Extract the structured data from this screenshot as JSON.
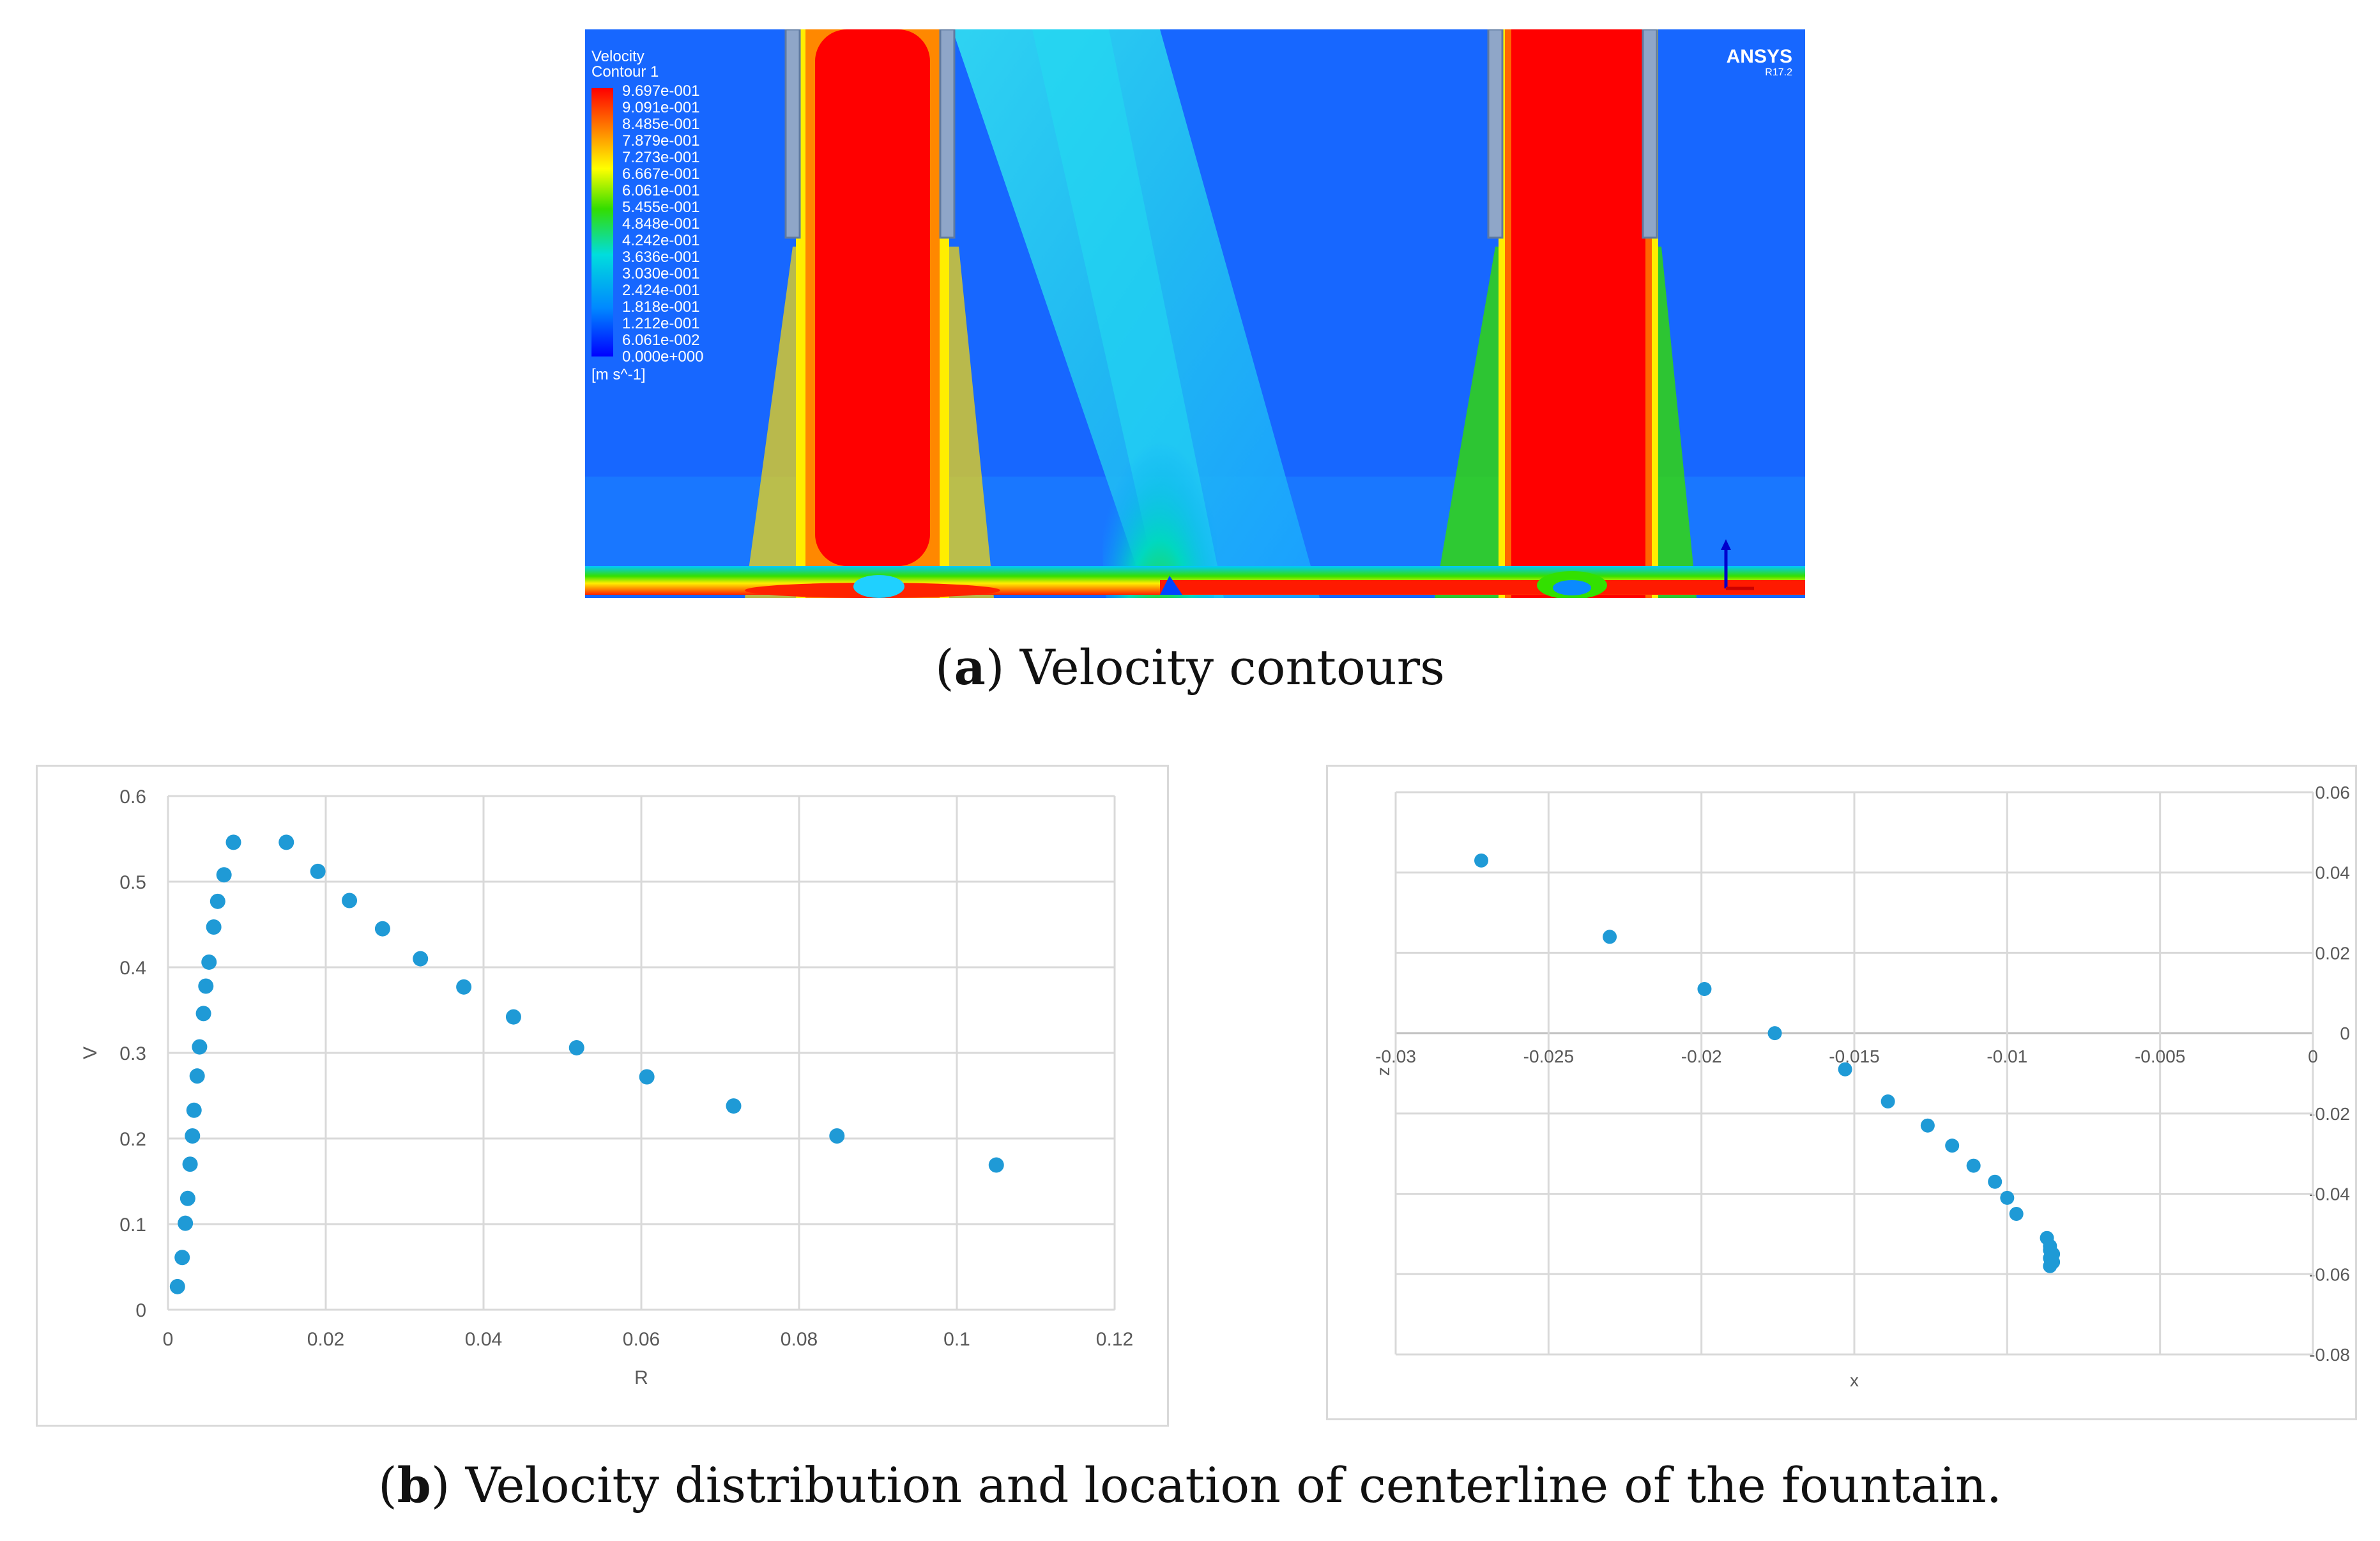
{
  "contour": {
    "legend_title_1": "Velocity",
    "legend_title_2": "Contour 1",
    "legend_values": [
      "9.697e-001",
      "9.091e-001",
      "8.485e-001",
      "7.879e-001",
      "7.273e-001",
      "6.667e-001",
      "6.061e-001",
      "5.455e-001",
      "4.848e-001",
      "4.242e-001",
      "3.636e-001",
      "3.030e-001",
      "2.424e-001",
      "1.818e-001",
      "1.212e-001",
      "6.061e-002",
      "0.000e+000"
    ],
    "unit": "[m s^-1]",
    "brand": "ANSYS",
    "version": "R17.2"
  },
  "captions": {
    "a_label": "a",
    "a_text": " Velocity contours",
    "b_label": "b",
    "b_text": " Velocity distribution and location of centerline of the fountain."
  },
  "chart_data": [
    {
      "type": "scatter",
      "title": "",
      "xlabel": "R",
      "ylabel": "V",
      "xlim": [
        0,
        0.12
      ],
      "ylim": [
        0,
        0.6
      ],
      "xticks": [
        0,
        0.02,
        0.04,
        0.06,
        0.08,
        0.1,
        0.12
      ],
      "xtick_labels": [
        "0",
        "0.02",
        "0.04",
        "0.06",
        "0.08",
        "0.1",
        "0.12"
      ],
      "yticks": [
        0,
        0.1,
        0.2,
        0.3,
        0.4,
        0.5,
        0.6
      ],
      "ytick_labels": [
        "0",
        "0.1",
        "0.2",
        "0.3",
        "0.4",
        "0.5",
        "0.6"
      ],
      "color": "#1f9ad6",
      "points": [
        [
          0.0012,
          0.027
        ],
        [
          0.0018,
          0.061
        ],
        [
          0.0022,
          0.101
        ],
        [
          0.0025,
          0.13
        ],
        [
          0.0028,
          0.17
        ],
        [
          0.0031,
          0.203
        ],
        [
          0.0033,
          0.233
        ],
        [
          0.0037,
          0.273
        ],
        [
          0.004,
          0.307
        ],
        [
          0.0045,
          0.346
        ],
        [
          0.0048,
          0.378
        ],
        [
          0.0052,
          0.406
        ],
        [
          0.0058,
          0.447
        ],
        [
          0.0063,
          0.477
        ],
        [
          0.0071,
          0.508
        ],
        [
          0.0083,
          0.546
        ],
        [
          0.015,
          0.546
        ],
        [
          0.019,
          0.512
        ],
        [
          0.023,
          0.478
        ],
        [
          0.0272,
          0.445
        ],
        [
          0.032,
          0.41
        ],
        [
          0.0375,
          0.377
        ],
        [
          0.0438,
          0.342
        ],
        [
          0.0518,
          0.306
        ],
        [
          0.0607,
          0.272
        ],
        [
          0.0717,
          0.238
        ],
        [
          0.0848,
          0.203
        ],
        [
          0.105,
          0.169
        ]
      ]
    },
    {
      "type": "scatter",
      "title": "",
      "xlabel": "x",
      "ylabel": "z",
      "xlim": [
        -0.03,
        0
      ],
      "ylim": [
        -0.08,
        0.06
      ],
      "xticks": [
        -0.03,
        -0.025,
        -0.02,
        -0.015,
        -0.01,
        -0.005,
        0
      ],
      "xtick_labels": [
        "-0.03",
        "-0.025",
        "-0.02",
        "-0.015",
        "-0.01",
        "-0.005",
        "0"
      ],
      "yticks": [
        -0.08,
        -0.06,
        -0.04,
        -0.02,
        0,
        0.02,
        0.04,
        0.06
      ],
      "ytick_labels": [
        "-0.08",
        "-0.06",
        "-0.04",
        "-0.02",
        "0",
        "0.02",
        "0.04",
        "0.06"
      ],
      "color": "#1f9ad6",
      "points": [
        [
          -0.0272,
          0.043
        ],
        [
          -0.023,
          0.024
        ],
        [
          -0.0199,
          0.011
        ],
        [
          -0.0176,
          0.0
        ],
        [
          -0.0153,
          -0.009
        ],
        [
          -0.0139,
          -0.017
        ],
        [
          -0.0126,
          -0.023
        ],
        [
          -0.0118,
          -0.028
        ],
        [
          -0.0111,
          -0.033
        ],
        [
          -0.0104,
          -0.037
        ],
        [
          -0.01,
          -0.041
        ],
        [
          -0.0097,
          -0.045
        ],
        [
          -0.0087,
          -0.051
        ],
        [
          -0.0086,
          -0.053
        ],
        [
          -0.0086,
          -0.054
        ],
        [
          -0.0085,
          -0.055
        ],
        [
          -0.0086,
          -0.056
        ],
        [
          -0.0085,
          -0.057
        ],
        [
          -0.0086,
          -0.058
        ]
      ]
    }
  ]
}
